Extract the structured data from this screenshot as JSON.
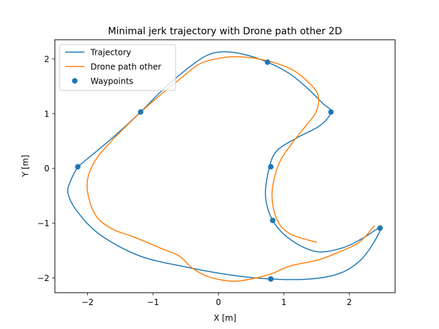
{
  "chart_data": {
    "type": "line",
    "title": "Minimal jerk trajectory with Drone path other 2D",
    "xlabel": "X [m]",
    "ylabel": "Y [m]",
    "xlim": [
      -2.5,
      2.7
    ],
    "ylim": [
      -2.27,
      2.35
    ],
    "xticks": [
      -2,
      -1,
      0,
      1,
      2
    ],
    "yticks": [
      -2,
      -1,
      0,
      1,
      2
    ],
    "grid": false,
    "legend_position": "upper-left",
    "colors": {
      "trajectory": "#1f77b4",
      "drone": "#ff7f0e",
      "waypoints": "#1f77b4"
    },
    "series": [
      {
        "name": "Trajectory",
        "kind": "line",
        "color": "#1f77b4",
        "points": [
          [
            -2.15,
            0.03
          ],
          [
            -1.6,
            0.58
          ],
          [
            -1.19,
            1.03
          ],
          [
            -0.9,
            1.38
          ],
          [
            -0.55,
            1.75
          ],
          [
            -0.2,
            2.05
          ],
          [
            0.07,
            2.13
          ],
          [
            0.4,
            2.08
          ],
          [
            0.75,
            1.94
          ],
          [
            1.1,
            1.72
          ],
          [
            1.4,
            1.42
          ],
          [
            1.6,
            1.18
          ],
          [
            1.72,
            1.03
          ],
          [
            1.55,
            0.78
          ],
          [
            1.2,
            0.56
          ],
          [
            0.9,
            0.33
          ],
          [
            0.78,
            0.03
          ],
          [
            0.72,
            -0.5
          ],
          [
            0.83,
            -0.95
          ],
          [
            1.1,
            -1.3
          ],
          [
            1.5,
            -1.52
          ],
          [
            1.9,
            -1.45
          ],
          [
            2.2,
            -1.28
          ],
          [
            2.47,
            -1.09
          ],
          [
            2.35,
            -1.4
          ],
          [
            2.15,
            -1.7
          ],
          [
            1.85,
            -1.92
          ],
          [
            1.4,
            -2.02
          ],
          [
            0.8,
            -2.02
          ],
          [
            0.2,
            -1.95
          ],
          [
            -0.5,
            -1.8
          ],
          [
            -1.2,
            -1.6
          ],
          [
            -1.8,
            -1.22
          ],
          [
            -2.15,
            -0.8
          ],
          [
            -2.3,
            -0.45
          ],
          [
            -2.25,
            -0.2
          ],
          [
            -2.15,
            0.03
          ]
        ]
      },
      {
        "name": "Drone path other",
        "kind": "line",
        "color": "#ff7f0e",
        "points": [
          [
            1.5,
            -1.35
          ],
          [
            1.1,
            -1.2
          ],
          [
            0.9,
            -0.95
          ],
          [
            0.82,
            -0.55
          ],
          [
            0.85,
            -0.2
          ],
          [
            0.95,
            0.15
          ],
          [
            1.15,
            0.5
          ],
          [
            1.35,
            0.8
          ],
          [
            1.5,
            1.05
          ],
          [
            1.52,
            1.35
          ],
          [
            1.35,
            1.6
          ],
          [
            1.1,
            1.82
          ],
          [
            0.7,
            1.98
          ],
          [
            0.3,
            2.04
          ],
          [
            0.0,
            2.01
          ],
          [
            -0.3,
            1.9
          ],
          [
            -0.6,
            1.62
          ],
          [
            -0.95,
            1.28
          ],
          [
            -1.3,
            0.9
          ],
          [
            -1.65,
            0.48
          ],
          [
            -1.88,
            0.15
          ],
          [
            -2.0,
            -0.2
          ],
          [
            -1.98,
            -0.55
          ],
          [
            -1.85,
            -0.9
          ],
          [
            -1.6,
            -1.12
          ],
          [
            -1.3,
            -1.25
          ],
          [
            -0.9,
            -1.45
          ],
          [
            -0.6,
            -1.6
          ],
          [
            -0.4,
            -1.82
          ],
          [
            -0.15,
            -1.98
          ],
          [
            0.2,
            -2.06
          ],
          [
            0.5,
            -2.02
          ],
          [
            0.8,
            -1.93
          ],
          [
            1.1,
            -1.78
          ],
          [
            1.5,
            -1.68
          ],
          [
            1.8,
            -1.55
          ],
          [
            2.15,
            -1.35
          ],
          [
            2.38,
            -1.05
          ]
        ]
      },
      {
        "name": "Waypoints",
        "kind": "scatter",
        "color": "#1f77b4",
        "points": [
          [
            -2.15,
            0.03
          ],
          [
            -1.19,
            1.03
          ],
          [
            0.75,
            1.94
          ],
          [
            1.72,
            1.03
          ],
          [
            0.8,
            0.03
          ],
          [
            0.83,
            -0.95
          ],
          [
            2.47,
            -1.09
          ],
          [
            0.8,
            -2.02
          ]
        ]
      }
    ]
  }
}
